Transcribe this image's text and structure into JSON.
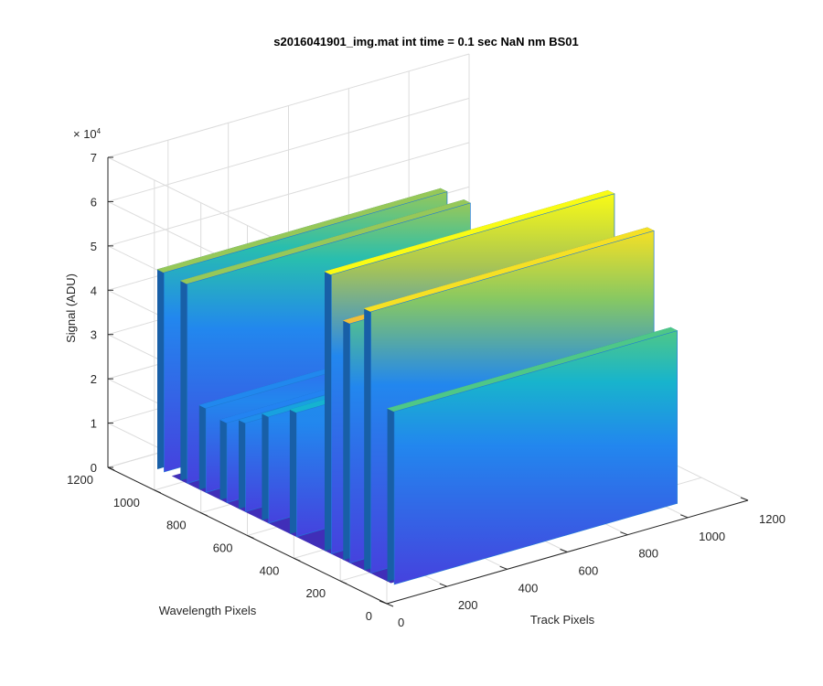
{
  "chart_data": {
    "type": "surface",
    "title": "s2016041901_img.mat int time = 0.1 sec  NaN nm BS01",
    "xlabel": "Track Pixels",
    "ylabel": "Wavelength Pixels",
    "zlabel": "Signal (ADU)",
    "z_exponent_label": "× 10",
    "z_exponent_power": "4",
    "xlim": [
      0,
      1200
    ],
    "ylim": [
      0,
      1200
    ],
    "zlim": [
      0,
      70000
    ],
    "x_ticks": [
      "0",
      "200",
      "400",
      "600",
      "800",
      "1000",
      "1200"
    ],
    "y_ticks": [
      "0",
      "200",
      "400",
      "600",
      "800",
      "1000",
      "1200"
    ],
    "z_ticks": [
      "0",
      "1",
      "2",
      "3",
      "4",
      "5",
      "6",
      "7"
    ],
    "z_tick_values": [
      0,
      10000,
      20000,
      30000,
      40000,
      50000,
      60000,
      70000
    ],
    "x_tick_values": [
      0,
      200,
      400,
      600,
      800,
      1000,
      1200
    ],
    "y_tick_values": [
      0,
      200,
      400,
      600,
      800,
      1000,
      1200
    ],
    "grid": true,
    "colormap": "parula",
    "baseline_signal": 2000,
    "spectral_lines": [
      {
        "track_start": 60,
        "track_end": 1000,
        "wavelength": 870,
        "peak_signal": 21000
      },
      {
        "track_start": 60,
        "track_end": 1000,
        "wavelength": 950,
        "peak_signal": 47000
      },
      {
        "track_start": 60,
        "track_end": 1000,
        "wavelength": 1050,
        "peak_signal": 47000
      },
      {
        "track_start": 60,
        "track_end": 1000,
        "wavelength": 780,
        "peak_signal": 20000
      },
      {
        "track_start": 60,
        "track_end": 1000,
        "wavelength": 700,
        "peak_signal": 22000
      },
      {
        "track_start": 60,
        "track_end": 1000,
        "wavelength": 600,
        "peak_signal": 26000
      },
      {
        "track_start": 60,
        "track_end": 1000,
        "wavelength": 480,
        "peak_signal": 30000
      },
      {
        "track_start": 60,
        "track_end": 1000,
        "wavelength": 330,
        "peak_signal": 65000
      },
      {
        "track_start": 60,
        "track_end": 1000,
        "wavelength": 250,
        "peak_signal": 56000
      },
      {
        "track_start": 60,
        "track_end": 1000,
        "wavelength": 160,
        "peak_signal": 61000
      },
      {
        "track_start": 60,
        "track_end": 1000,
        "wavelength": 60,
        "peak_signal": 41000
      }
    ]
  }
}
